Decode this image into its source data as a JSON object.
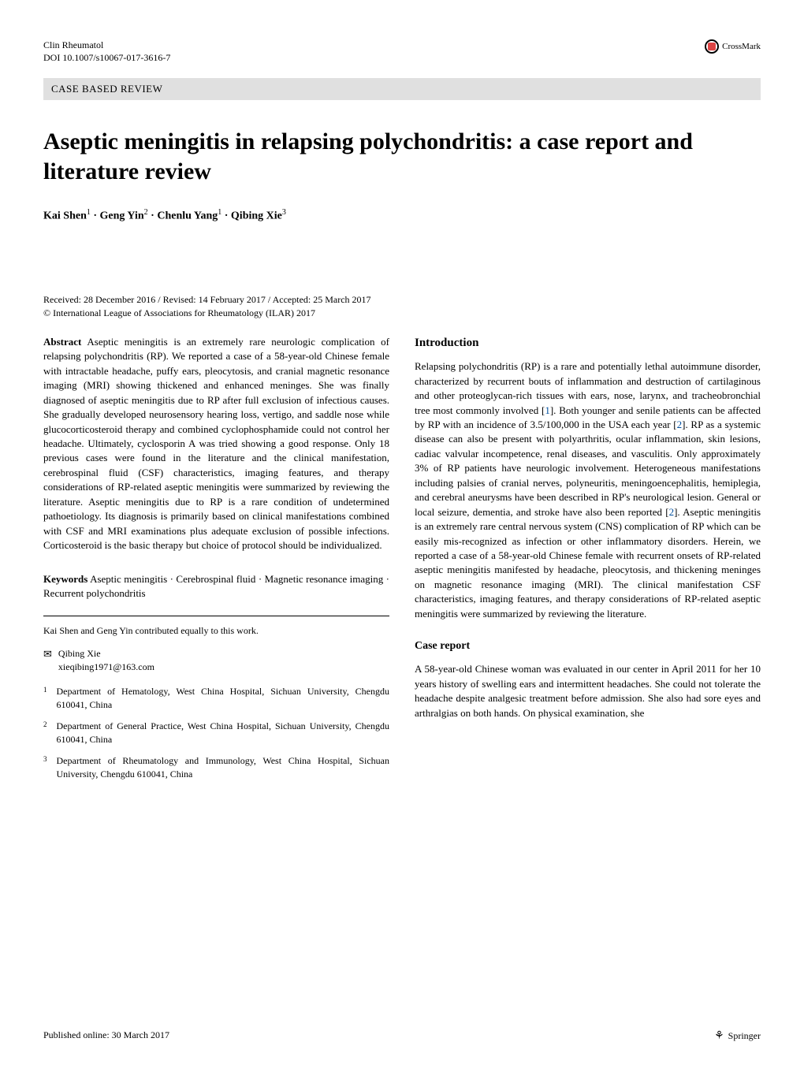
{
  "header": {
    "journal": "Clin Rheumatol",
    "doi": "DOI 10.1007/s10067-017-3616-7",
    "crossmark": "CrossMark"
  },
  "category": "CASE BASED REVIEW",
  "title": "Aseptic meningitis in relapsing polychondritis: a case report and literature review",
  "authors": {
    "a1": "Kai Shen",
    "s1": "1",
    "a2": "Geng Yin",
    "s2": "2",
    "a3": "Chenlu Yang",
    "s3": "1",
    "a4": "Qibing Xie",
    "s4": "3"
  },
  "dates": "Received: 28 December 2016 / Revised: 14 February 2017 / Accepted: 25 March 2017",
  "copyright": "© International League of Associations for Rheumatology (ILAR) 2017",
  "abstract_label": "Abstract",
  "abstract": " Aseptic meningitis is an extremely rare neurologic complication of relapsing polychondritis (RP). We reported a case of a 58-year-old Chinese female with intractable headache, puffy ears, pleocytosis, and cranial magnetic resonance imaging (MRI) showing thickened and enhanced meninges. She was finally diagnosed of aseptic meningitis due to RP after full exclusion of infectious causes. She gradually developed neurosensory hearing loss, vertigo, and saddle nose while glucocorticosteroid therapy and combined cyclophosphamide could not control her headache. Ultimately, cyclosporin A was tried showing a good response. Only 18 previous cases were found in the literature and the clinical manifestation, cerebrospinal fluid (CSF) characteristics, imaging features, and therapy considerations of RP-related aseptic meningitis were summarized by reviewing the literature. Aseptic meningitis due to RP is a rare condition of undetermined pathoetiology. Its diagnosis is primarily based on clinical manifestations combined with CSF and MRI examinations plus adequate exclusion of possible infections. Corticosteroid is the basic therapy but choice of protocol should be individualized.",
  "keywords_label": "Keywords",
  "keywords": " Aseptic meningitis · Cerebrospinal fluid · Magnetic resonance imaging · Recurrent polychondritis",
  "contribution": "Kai Shen and Geng Yin contributed equally to this work.",
  "corresponding": {
    "name": "Qibing Xie",
    "email": "xieqibing1971@163.com"
  },
  "affiliations": {
    "n1": "1",
    "t1": "Department of Hematology, West China Hospital, Sichuan University, Chengdu 610041, China",
    "n2": "2",
    "t2": "Department of General Practice, West China Hospital, Sichuan University, Chengdu 610041, China",
    "n3": "3",
    "t3": "Department of Rheumatology and Immunology, West China Hospital, Sichuan University, Chengdu 610041, China"
  },
  "intro_heading": "Introduction",
  "intro_p1a": "Relapsing polychondritis (RP) is a rare and potentially lethal autoimmune disorder, characterized by recurrent bouts of inflammation and destruction of cartilaginous and other proteoglycan-rich tissues with ears, nose, larynx, and tracheobronchial tree most commonly involved [",
  "ref1": "1",
  "intro_p1b": "]. Both younger and senile patients can be affected by RP with an incidence of 3.5/100,000 in the USA each year [",
  "ref2a": "2",
  "intro_p1c": "]. RP as a systemic disease can also be present with polyarthritis, ocular inflammation, skin lesions, cadiac valvular incompetence, renal diseases, and vasculitis. Only approximately 3% of RP patients have neurologic involvement. Heterogeneous manifestations including palsies of cranial nerves, polyneuritis, meningoencephalitis, hemiplegia, and cerebral aneurysms have been described in RP's neurological lesion. General or local seizure, dementia, and stroke have also been reported [",
  "ref2b": "2",
  "intro_p1d": "]. Aseptic meningitis is an extremely rare central nervous system (CNS) complication of RP which can be easily mis-recognized as infection or other inflammatory disorders. Herein, we reported a case of a 58-year-old Chinese female with recurrent onsets of RP-related aseptic meningitis manifested by headache, pleocytosis, and thickening meninges on magnetic resonance imaging (MRI). The clinical manifestation CSF characteristics, imaging features, and therapy considerations of RP-related aseptic meningitis were summarized by reviewing the literature.",
  "case_heading": "Case report",
  "case_p1": "A 58-year-old Chinese woman was evaluated in our center in April 2011 for her 10 years history of swelling ears and intermittent headaches. She could not tolerate the headache despite analgesic treatment before admission. She also had sore eyes and arthralgias on both hands. On physical examination, she",
  "footer": {
    "published": "Published online: 30 March 2017",
    "publisher": "Springer"
  }
}
